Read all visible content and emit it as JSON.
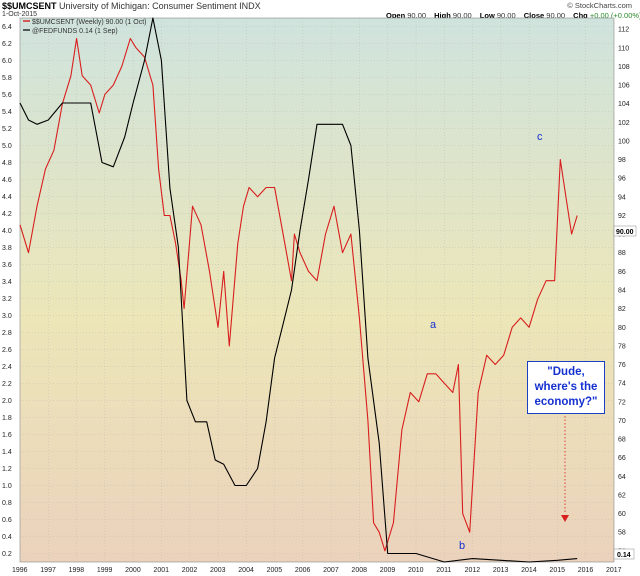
{
  "header": {
    "symbol": "$$UMCSENT",
    "name": "University of Michigan: Consumer Sentiment INDX",
    "date": "1-Oct-2015",
    "ohlc": [
      {
        "k": "Open",
        "v": "90.00"
      },
      {
        "k": "High",
        "v": "90.00"
      },
      {
        "k": "Low",
        "v": "90.00"
      },
      {
        "k": "Close",
        "v": "90.00"
      },
      {
        "k": "Chg",
        "v": "+0.00 (+0.00%)"
      }
    ],
    "credit": "© StockCharts.com"
  },
  "legend": {
    "series1": "$$UMCSENT (Weekly) 90.00 (1 Oct)",
    "series2": "@FEDFUNDS 0.14 (1 Sep)"
  },
  "annotations": {
    "a": "a",
    "b": "b",
    "c": "c",
    "callout_line1": "\"Dude,",
    "callout_line2": "where's the",
    "callout_line3": "economy?\""
  },
  "value_tags": {
    "right": "90.00",
    "bottom": "0.14"
  },
  "colors": {
    "sentiment": "#d81e1e",
    "fedfunds": "#000000",
    "annotation": "#1530d0",
    "bg_top": "#cfe3dd",
    "bg_mid": "#ece6b8",
    "bg_bottom": "#ebd2bc"
  },
  "chart_data": {
    "type": "line",
    "x_ticks": [
      "1996",
      "1997",
      "1998",
      "1999",
      "2000",
      "2001",
      "2002",
      "2003",
      "2004",
      "2005",
      "2006",
      "2007",
      "2008",
      "2009",
      "2010",
      "2011",
      "2012",
      "2013",
      "2014",
      "2015",
      "2016",
      "2017"
    ],
    "left_axis": {
      "ticks": [
        "0.2",
        "0.4",
        "0.6",
        "0.8",
        "1.0",
        "1.2",
        "1.4",
        "1.6",
        "1.8",
        "2.0",
        "2.2",
        "2.4",
        "2.6",
        "2.8",
        "3.0",
        "3.2",
        "3.4",
        "3.6",
        "3.8",
        "4.0",
        "4.2",
        "4.4",
        "4.6",
        "4.8",
        "5.0",
        "5.2",
        "5.4",
        "5.6",
        "5.8",
        "6.0",
        "6.2",
        "6.4"
      ],
      "range": [
        0.1,
        6.5
      ]
    },
    "right_axis": {
      "ticks": [
        "56",
        "58",
        "60",
        "62",
        "64",
        "66",
        "68",
        "70",
        "72",
        "74",
        "76",
        "78",
        "80",
        "82",
        "84",
        "86",
        "88",
        "90",
        "92",
        "94",
        "96",
        "98",
        "100",
        "102",
        "104",
        "106",
        "108",
        "110",
        "112"
      ],
      "range": [
        54.8,
        113.2
      ]
    },
    "series": [
      {
        "name": "$$UMCSENT (Weekly)",
        "axis": "right",
        "x": [
          1996.0,
          1996.3,
          1996.6,
          1996.9,
          1997.2,
          1997.5,
          1997.8,
          1998.0,
          1998.2,
          1998.5,
          1998.8,
          1999.0,
          1999.3,
          1999.6,
          1999.9,
          2000.1,
          2000.4,
          2000.7,
          2000.9,
          2001.1,
          2001.3,
          2001.5,
          2001.7,
          2001.8,
          2002.1,
          2002.4,
          2002.7,
          2003.0,
          2003.2,
          2003.4,
          2003.7,
          2003.9,
          2004.1,
          2004.4,
          2004.7,
          2005.0,
          2005.3,
          2005.6,
          2005.7,
          2005.9,
          2006.2,
          2006.5,
          2006.8,
          2007.1,
          2007.4,
          2007.7,
          2008.0,
          2008.3,
          2008.5,
          2008.7,
          2008.9,
          2009.2,
          2009.5,
          2009.8,
          2010.1,
          2010.4,
          2010.7,
          2011.0,
          2011.3,
          2011.5,
          2011.65,
          2011.9,
          2012.2,
          2012.5,
          2012.8,
          2013.1,
          2013.4,
          2013.7,
          2014.0,
          2014.3,
          2014.6,
          2014.9,
          2015.1,
          2015.3,
          2015.5,
          2015.7
        ],
        "y": [
          91,
          88,
          93,
          97,
          99,
          104,
          107,
          111,
          107,
          106,
          103,
          105,
          106,
          108,
          111,
          110,
          109,
          106,
          97,
          92,
          92,
          89,
          85,
          82,
          93,
          91,
          86,
          80,
          86,
          78,
          89,
          93,
          95,
          94,
          95,
          95,
          90,
          85,
          90,
          88,
          86,
          85,
          90,
          93,
          88,
          90,
          81,
          70,
          59,
          58,
          56,
          59,
          69,
          73,
          72,
          75,
          75,
          74,
          73,
          76,
          60,
          58,
          73,
          77,
          76,
          77,
          80,
          81,
          80,
          83,
          85,
          85,
          98,
          94,
          90,
          92
        ]
      },
      {
        "name": "@FEDFUNDS",
        "axis": "left",
        "x": [
          1996.0,
          1996.3,
          1996.6,
          1997.0,
          1997.5,
          1998.0,
          1998.5,
          1998.9,
          1999.3,
          1999.7,
          2000.0,
          2000.4,
          2000.7,
          2001.0,
          2001.3,
          2001.6,
          2001.9,
          2002.2,
          2002.6,
          2002.9,
          2003.2,
          2003.6,
          2004.0,
          2004.4,
          2004.7,
          2005.0,
          2005.3,
          2005.6,
          2005.9,
          2006.2,
          2006.5,
          2006.8,
          2007.1,
          2007.4,
          2007.7,
          2008.0,
          2008.3,
          2008.7,
          2009.0,
          2010.0,
          2011.0,
          2012.0,
          2013.0,
          2014.0,
          2015.0,
          2015.7
        ],
        "y": [
          5.5,
          5.3,
          5.25,
          5.3,
          5.5,
          5.5,
          5.5,
          4.8,
          4.75,
          5.1,
          5.5,
          6.0,
          6.5,
          6.0,
          4.5,
          3.8,
          2.0,
          1.75,
          1.75,
          1.3,
          1.25,
          1.0,
          1.0,
          1.2,
          1.75,
          2.5,
          2.9,
          3.3,
          4.0,
          4.6,
          5.25,
          5.25,
          5.25,
          5.25,
          5.0,
          4.0,
          2.5,
          1.5,
          0.2,
          0.2,
          0.1,
          0.14,
          0.12,
          0.1,
          0.12,
          0.14
        ]
      }
    ],
    "grid": true
  }
}
